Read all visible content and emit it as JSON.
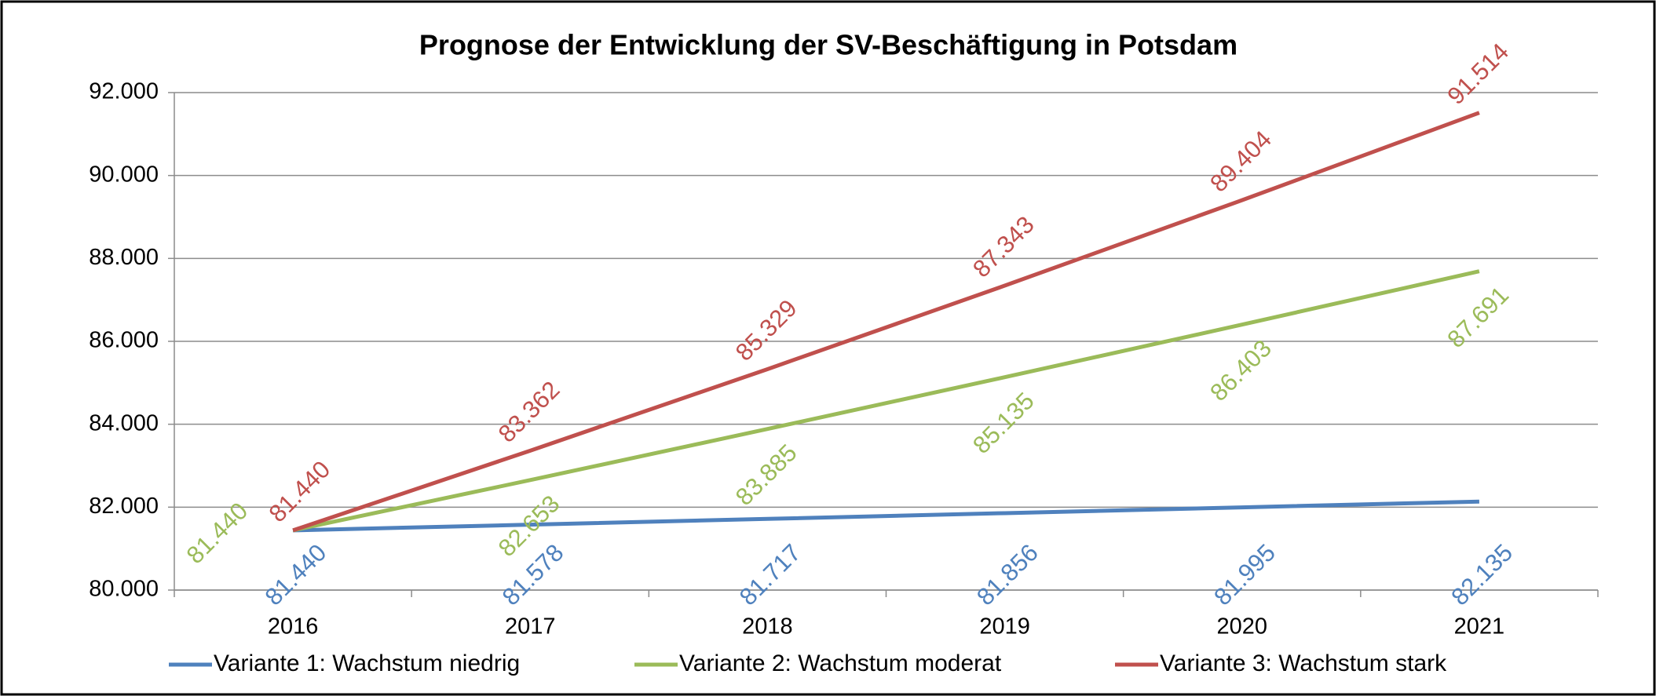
{
  "chart_data": {
    "type": "line",
    "title": "Prognose der Entwicklung der SV-Beschäftigung in Potsdam",
    "categories": [
      "2016",
      "2017",
      "2018",
      "2019",
      "2020",
      "2021"
    ],
    "series": [
      {
        "name": "Variante 1: Wachstum niedrig",
        "color": "#4f81bd",
        "values": [
          81440,
          81578,
          81717,
          81856,
          81995,
          82135
        ],
        "value_labels": [
          "81.440",
          "81.578",
          "81.717",
          "81.856",
          "81.995",
          "82.135"
        ]
      },
      {
        "name": "Variante 2: Wachstum moderat",
        "color": "#9bbb59",
        "values": [
          81440,
          82653,
          83885,
          85135,
          86403,
          87691
        ],
        "value_labels": [
          "81.440",
          "82.653",
          "83.885",
          "85.135",
          "86.403",
          "87.691"
        ]
      },
      {
        "name": "Variante 3: Wachstum stark",
        "color": "#c0504d",
        "values": [
          81440,
          83362,
          85329,
          87343,
          89404,
          91514
        ],
        "value_labels": [
          "81.440",
          "83.362",
          "85.329",
          "87.343",
          "89.404",
          "91.514"
        ]
      }
    ],
    "ylim": [
      80000,
      92000
    ],
    "yticks": [
      {
        "value": 80000,
        "label": "80.000"
      },
      {
        "value": 82000,
        "label": "82.000"
      },
      {
        "value": 84000,
        "label": "84.000"
      },
      {
        "value": 86000,
        "label": "86.000"
      },
      {
        "value": 88000,
        "label": "88.000"
      },
      {
        "value": 90000,
        "label": "90.000"
      },
      {
        "value": 92000,
        "label": "92.000"
      }
    ],
    "grid": true,
    "legend": "bottom"
  }
}
